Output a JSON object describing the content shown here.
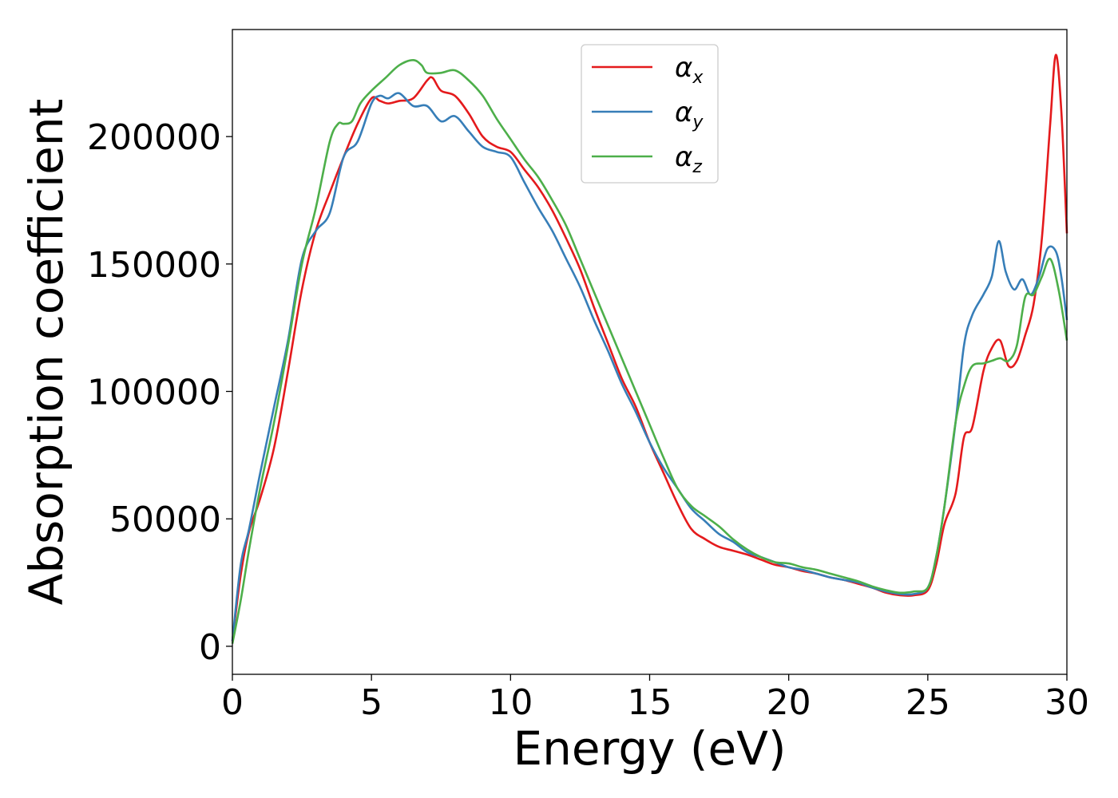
{
  "chart_data": {
    "type": "line",
    "xlabel": "Energy (eV)",
    "ylabel": "Absorption coefficient",
    "xlim": [
      0,
      30
    ],
    "ylim": [
      -11000,
      242000
    ],
    "xticks": [
      0,
      5,
      10,
      15,
      20,
      25,
      30
    ],
    "xtick_labels": [
      "0",
      "5",
      "10",
      "15",
      "20",
      "25",
      "30"
    ],
    "yticks": [
      0,
      50000,
      100000,
      150000,
      200000
    ],
    "ytick_labels": [
      "0",
      "50000",
      "100000",
      "150000",
      "200000"
    ],
    "grid": false,
    "legend_position": "top-center",
    "series": [
      {
        "name": "α",
        "subscript": "x",
        "color": "#e41a1c",
        "x": [
          0,
          0.3,
          0.6,
          1.0,
          1.5,
          2.0,
          2.5,
          3.0,
          3.5,
          4.0,
          4.5,
          5.0,
          5.3,
          5.6,
          6.0,
          6.5,
          7.0,
          7.2,
          7.5,
          8.0,
          8.5,
          9.0,
          9.5,
          10.0,
          10.5,
          11.0,
          11.5,
          12.0,
          12.5,
          13.0,
          13.5,
          14.0,
          14.5,
          15.0,
          15.5,
          16.0,
          16.5,
          17.0,
          17.5,
          18.0,
          18.5,
          19.0,
          19.5,
          20.0,
          20.5,
          21.0,
          21.5,
          22.0,
          22.5,
          23.0,
          23.5,
          24.0,
          24.5,
          25.0,
          25.3,
          25.6,
          26.0,
          26.3,
          26.6,
          27.0,
          27.3,
          27.6,
          27.9,
          28.2,
          28.5,
          28.8,
          29.1,
          29.4,
          29.6,
          29.8,
          30.0
        ],
        "y": [
          2000,
          28000,
          45000,
          58000,
          78000,
          108000,
          140000,
          163000,
          178000,
          192000,
          205000,
          215000,
          214000,
          213000,
          214000,
          215000,
          222000,
          223000,
          218000,
          216000,
          209000,
          200000,
          196000,
          194000,
          187000,
          180000,
          171000,
          160000,
          148000,
          133000,
          119000,
          105000,
          94000,
          80000,
          68000,
          56000,
          46000,
          42000,
          39000,
          37500,
          36000,
          34000,
          32000,
          31000,
          29500,
          28500,
          27000,
          26000,
          24500,
          23000,
          21000,
          20000,
          20000,
          22000,
          32000,
          48000,
          60000,
          82000,
          86000,
          108000,
          117000,
          120000,
          110000,
          112000,
          122000,
          134000,
          160000,
          205000,
          232000,
          210000,
          162000
        ]
      },
      {
        "name": "α",
        "subscript": "y",
        "color": "#377eb8",
        "x": [
          0,
          0.3,
          0.6,
          1.0,
          1.5,
          2.0,
          2.5,
          3.0,
          3.5,
          4.0,
          4.5,
          5.0,
          5.3,
          5.6,
          6.0,
          6.5,
          7.0,
          7.5,
          8.0,
          8.5,
          9.0,
          9.5,
          10.0,
          10.5,
          11.0,
          11.5,
          12.0,
          12.5,
          13.0,
          13.5,
          14.0,
          14.5,
          15.0,
          15.5,
          16.0,
          16.5,
          17.0,
          17.5,
          18.0,
          18.5,
          19.0,
          19.5,
          20.0,
          20.5,
          21.0,
          21.5,
          22.0,
          22.5,
          23.0,
          23.5,
          24.0,
          24.5,
          25.0,
          25.3,
          25.6,
          26.0,
          26.3,
          26.6,
          27.0,
          27.3,
          27.55,
          27.8,
          28.1,
          28.4,
          28.7,
          29.0,
          29.3,
          29.6,
          29.8,
          30.0
        ],
        "y": [
          2000,
          32000,
          46000,
          68000,
          94000,
          120000,
          152000,
          163000,
          170000,
          192000,
          198000,
          213000,
          216000,
          215000,
          217000,
          212000,
          212000,
          206000,
          208000,
          202000,
          196000,
          194000,
          192000,
          182000,
          172000,
          163000,
          152000,
          141000,
          128000,
          116000,
          103000,
          92000,
          80000,
          70000,
          62000,
          54000,
          49000,
          44000,
          41000,
          37000,
          35000,
          33000,
          31000,
          30000,
          28500,
          27000,
          26000,
          25000,
          23000,
          21500,
          20500,
          20500,
          23000,
          35000,
          55000,
          88000,
          118000,
          130000,
          138000,
          145000,
          159000,
          147000,
          140000,
          144000,
          138000,
          145000,
          156000,
          155000,
          145000,
          128000
        ]
      },
      {
        "name": "α",
        "subscript": "z",
        "color": "#4daf4a",
        "x": [
          0,
          0.3,
          0.6,
          1.0,
          1.5,
          2.0,
          2.5,
          3.0,
          3.5,
          3.8,
          4.0,
          4.3,
          4.6,
          5.0,
          5.5,
          6.0,
          6.5,
          6.8,
          7.0,
          7.5,
          8.0,
          8.5,
          9.0,
          9.5,
          10.0,
          10.5,
          11.0,
          11.5,
          12.0,
          12.5,
          13.0,
          13.5,
          14.0,
          14.5,
          15.0,
          15.5,
          16.0,
          16.5,
          17.0,
          17.5,
          18.0,
          18.5,
          19.0,
          19.5,
          20.0,
          20.5,
          21.0,
          21.5,
          22.0,
          22.5,
          23.0,
          23.5,
          24.0,
          24.5,
          25.0,
          25.3,
          25.6,
          26.0,
          26.3,
          26.6,
          27.0,
          27.3,
          27.6,
          27.9,
          28.2,
          28.5,
          28.8,
          29.1,
          29.4,
          29.7,
          30.0
        ],
        "y": [
          1000,
          18000,
          38000,
          62000,
          88000,
          118000,
          150000,
          172000,
          198000,
          205000,
          205000,
          206000,
          213000,
          218000,
          223000,
          228000,
          230000,
          228000,
          225000,
          225000,
          226000,
          222000,
          216000,
          207000,
          199000,
          191000,
          184000,
          175000,
          165000,
          152000,
          139000,
          126000,
          113000,
          100000,
          87000,
          74000,
          62000,
          55000,
          51000,
          47000,
          42000,
          38000,
          35000,
          33000,
          32500,
          31000,
          30000,
          28500,
          27000,
          25500,
          23500,
          22000,
          21000,
          21500,
          23000,
          35000,
          55000,
          88000,
          102000,
          110000,
          111000,
          112000,
          113000,
          112000,
          118000,
          137000,
          138000,
          145000,
          152000,
          140000,
          120000
        ]
      }
    ]
  }
}
